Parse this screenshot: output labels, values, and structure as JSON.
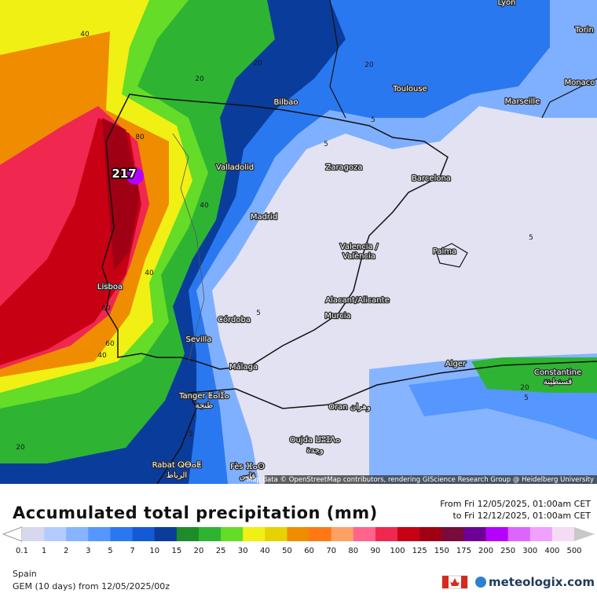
{
  "map": {
    "cities": [
      "Lyon",
      "Torin",
      "Monaco",
      "Bilbao",
      "Toulouse",
      "Marseille",
      "Zaragoza",
      "Barcelona",
      "Valladolid",
      "Madrid",
      "Valencia /",
      "València",
      "Palma",
      "Lisboa",
      "Alacant/Alicante",
      "Murcia",
      "Córdoba",
      "Sevilla",
      "Málaga",
      "Alger",
      "Constantine",
      "قسنطينة",
      "Tanger ⵟⴰⵏⵊⴰ",
      "طنجة",
      "Oran وهران",
      "Oujda ⵡⵓⵊⴷⴰ",
      "وجدة",
      "Rabat ⵕⴱⴰⵟ",
      "الرباط",
      "Fès ⴼⴰⵙ",
      "فاس"
    ],
    "contour_labels": [
      40,
      20,
      20,
      20,
      80,
      40,
      40,
      80,
      60,
      40,
      5,
      5,
      5,
      5,
      5,
      20,
      20,
      5
    ],
    "max_value": 217,
    "attribution": "Map data © OpenStreetMap contributors, rendering GIScience Research Group @ Heidelberg University"
  },
  "legend": {
    "title": "Accumulated total precipitation (mm)",
    "from": "From Fri 12/05/2025, 01:00am CET",
    "to": "to Fri 12/12/2025, 01:00am CET",
    "scale": [
      0.1,
      1,
      2,
      3,
      5,
      7,
      10,
      15,
      20,
      25,
      30,
      40,
      50,
      60,
      70,
      80,
      90,
      100,
      125,
      150,
      175,
      200,
      250,
      300,
      400,
      500
    ],
    "colors": [
      "#d7d7ee",
      "#b3ccff",
      "#86b4ff",
      "#5596ff",
      "#2a78f0",
      "#1459d6",
      "#0a3c9c",
      "#1e8c28",
      "#2eb432",
      "#64dc28",
      "#f0f014",
      "#e6d200",
      "#f08c00",
      "#ff7814",
      "#ffa064",
      "#ff648c",
      "#f02850",
      "#c80014",
      "#a00014",
      "#780a3c",
      "#6e0096",
      "#b400ff",
      "#dc64ff",
      "#f0a0ff",
      "#f5dcf5"
    ]
  },
  "footer": {
    "region": "Spain",
    "model": "GEM (10 days) from 12/05/2025/00z",
    "brand": "meteologix.com"
  }
}
